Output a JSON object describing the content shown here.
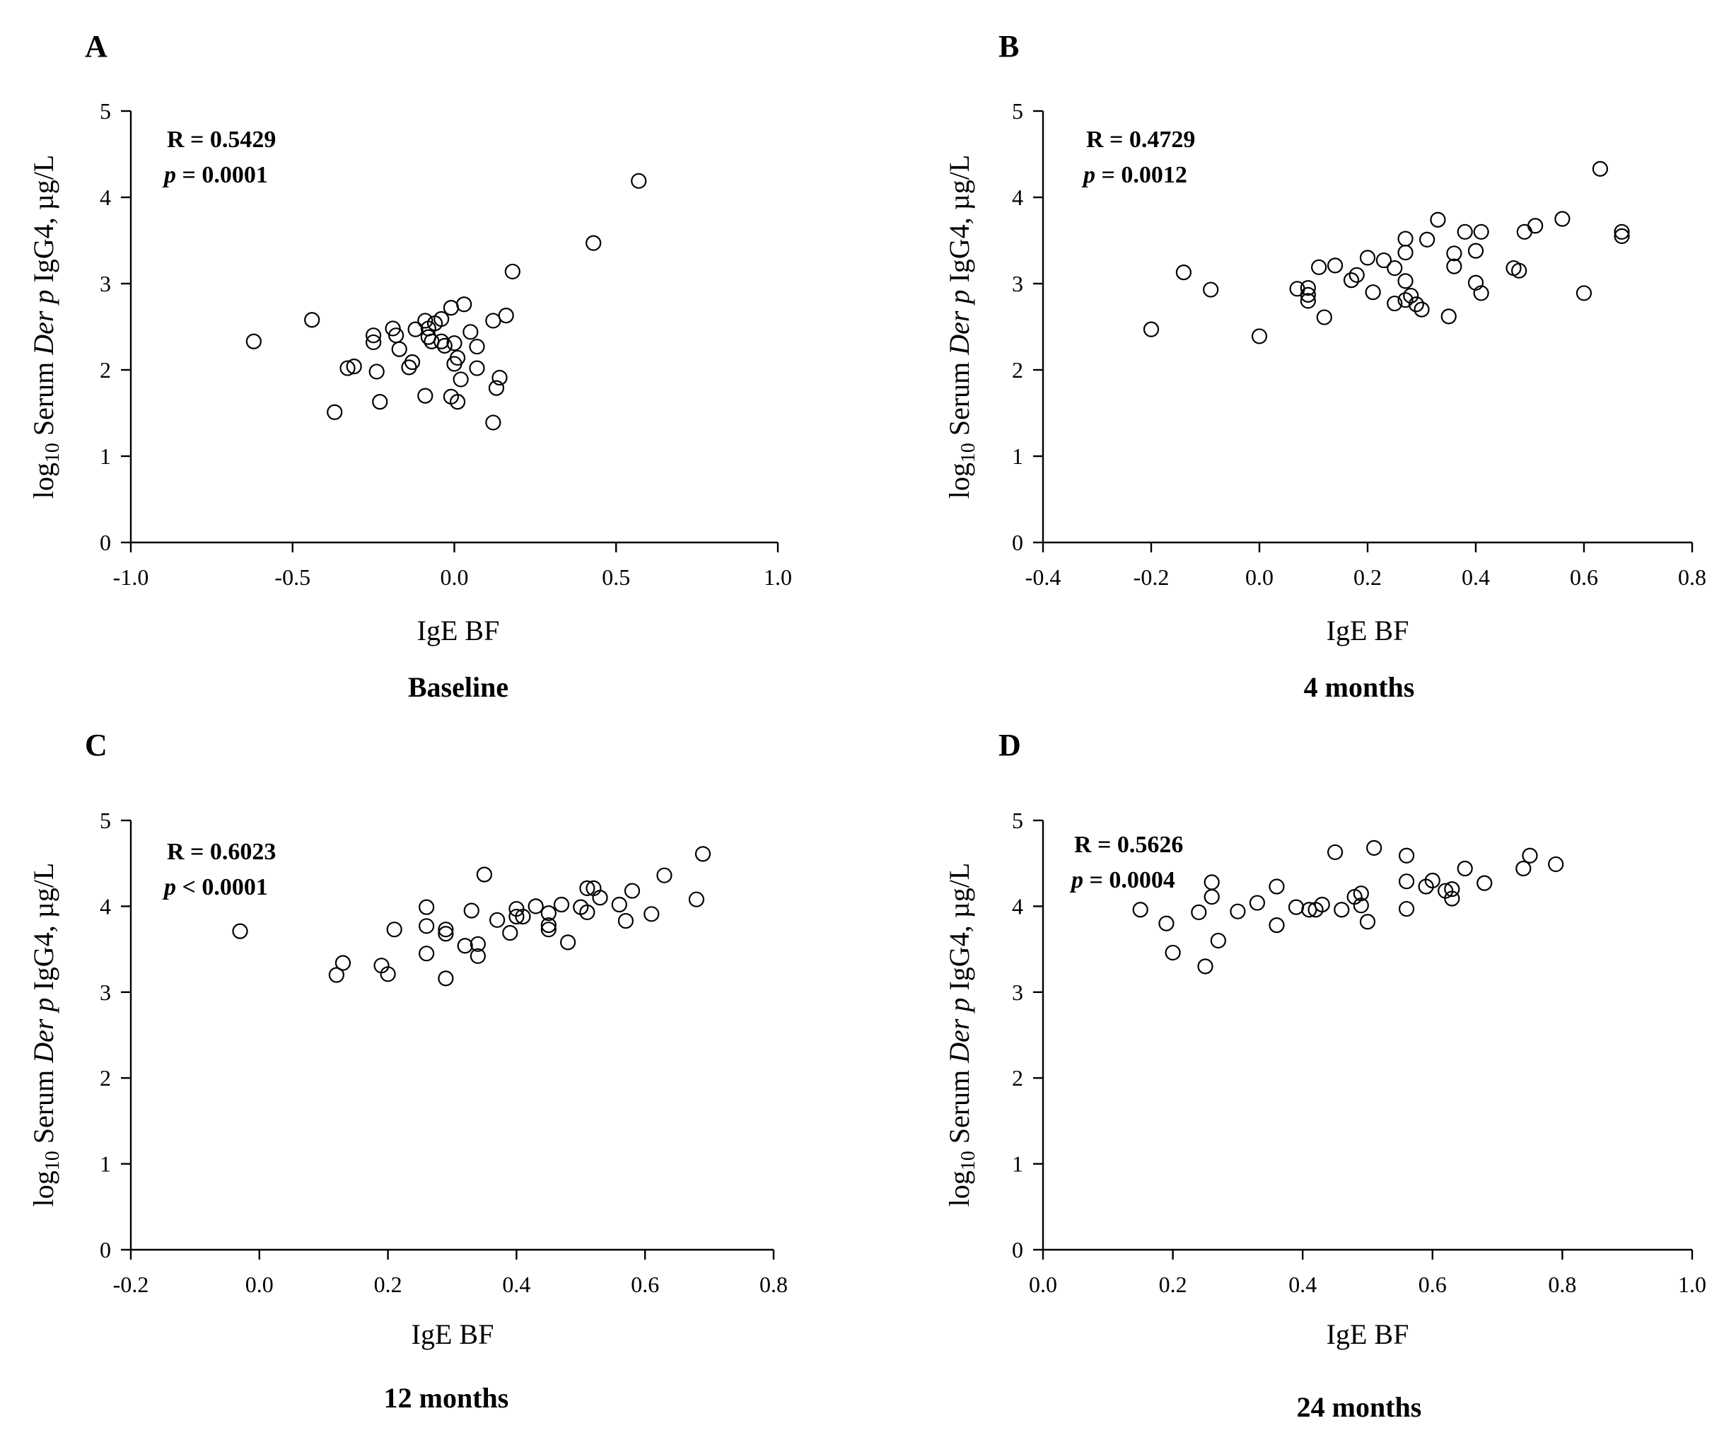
{
  "chart_data": [
    {
      "panel": "A",
      "type": "scatter",
      "subtitle": "Baseline",
      "xlabel": "IgE BF",
      "ylabel_pre": "log",
      "ylabel_sub": "10",
      "ylabel_mid": " Serum ",
      "ylabel_italic": "Der p",
      "ylabel_post": " IgG4,  µg/L",
      "stat_r": "R = 0.5429",
      "stat_p_italic": "p",
      "stat_p_value": " = 0.0001",
      "xlim": [
        -1.0,
        1.0
      ],
      "ylim": [
        0,
        5
      ],
      "xticks": [
        -1.0,
        -0.5,
        0.0,
        0.5,
        1.0
      ],
      "xtick_labels": [
        "-1.0",
        "-0.5",
        "0.0",
        "0.5",
        "1.0"
      ],
      "yticks": [
        0,
        1,
        2,
        3,
        4,
        5
      ],
      "ytick_labels": [
        "0",
        "1",
        "2",
        "3",
        "4",
        "5"
      ],
      "points": [
        [
          -0.62,
          2.33
        ],
        [
          -0.44,
          2.58
        ],
        [
          -0.37,
          1.51
        ],
        [
          -0.33,
          2.02
        ],
        [
          -0.31,
          2.04
        ],
        [
          -0.25,
          2.4
        ],
        [
          -0.25,
          2.32
        ],
        [
          -0.24,
          1.98
        ],
        [
          -0.23,
          1.63
        ],
        [
          -0.19,
          2.48
        ],
        [
          -0.18,
          2.4
        ],
        [
          -0.17,
          2.24
        ],
        [
          -0.14,
          2.03
        ],
        [
          -0.13,
          2.09
        ],
        [
          -0.12,
          2.47
        ],
        [
          -0.09,
          2.57
        ],
        [
          -0.09,
          1.7
        ],
        [
          -0.08,
          2.48
        ],
        [
          -0.08,
          2.38
        ],
        [
          -0.07,
          2.33
        ],
        [
          -0.06,
          2.54
        ],
        [
          -0.04,
          2.59
        ],
        [
          -0.04,
          2.33
        ],
        [
          -0.03,
          2.28
        ],
        [
          -0.01,
          2.72
        ],
        [
          -0.01,
          1.69
        ],
        [
          0.0,
          2.31
        ],
        [
          0.0,
          2.07
        ],
        [
          0.01,
          2.14
        ],
        [
          0.01,
          1.63
        ],
        [
          0.02,
          1.89
        ],
        [
          0.03,
          2.76
        ],
        [
          0.05,
          2.44
        ],
        [
          0.07,
          2.27
        ],
        [
          0.07,
          2.02
        ],
        [
          0.12,
          2.57
        ],
        [
          0.12,
          1.39
        ],
        [
          0.13,
          1.79
        ],
        [
          0.14,
          1.91
        ],
        [
          0.16,
          2.63
        ],
        [
          0.18,
          3.14
        ],
        [
          0.43,
          3.47
        ],
        [
          0.57,
          4.19
        ]
      ]
    },
    {
      "panel": "B",
      "type": "scatter",
      "subtitle": "4 months",
      "xlabel": "IgE BF",
      "ylabel_pre": "log",
      "ylabel_sub": "10",
      "ylabel_mid": " Serum ",
      "ylabel_italic": "Der p",
      "ylabel_post": " IgG4,  µg/L",
      "stat_r": "R = 0.4729",
      "stat_p_italic": "p",
      "stat_p_value": " = 0.0012",
      "xlim": [
        -0.4,
        0.8
      ],
      "ylim": [
        0,
        5
      ],
      "xticks": [
        -0.4,
        -0.2,
        0.0,
        0.2,
        0.4,
        0.6,
        0.8
      ],
      "xtick_labels": [
        "-0.4",
        "-0.2",
        "0.0",
        "0.2",
        "0.4",
        "0.6",
        "0.8"
      ],
      "yticks": [
        0,
        1,
        2,
        3,
        4,
        5
      ],
      "ytick_labels": [
        "0",
        "1",
        "2",
        "3",
        "4",
        "5"
      ],
      "points": [
        [
          -0.2,
          2.47
        ],
        [
          -0.14,
          3.13
        ],
        [
          -0.09,
          2.93
        ],
        [
          0.0,
          2.39
        ],
        [
          0.07,
          2.94
        ],
        [
          0.09,
          2.95
        ],
        [
          0.09,
          2.87
        ],
        [
          0.09,
          2.8
        ],
        [
          0.11,
          3.19
        ],
        [
          0.12,
          2.61
        ],
        [
          0.14,
          3.21
        ],
        [
          0.17,
          3.04
        ],
        [
          0.18,
          3.1
        ],
        [
          0.2,
          3.3
        ],
        [
          0.21,
          2.9
        ],
        [
          0.23,
          3.27
        ],
        [
          0.25,
          3.18
        ],
        [
          0.25,
          2.77
        ],
        [
          0.27,
          3.52
        ],
        [
          0.27,
          3.36
        ],
        [
          0.27,
          3.03
        ],
        [
          0.27,
          2.81
        ],
        [
          0.28,
          2.86
        ],
        [
          0.29,
          2.76
        ],
        [
          0.3,
          2.7
        ],
        [
          0.31,
          3.51
        ],
        [
          0.33,
          3.74
        ],
        [
          0.35,
          2.62
        ],
        [
          0.36,
          3.35
        ],
        [
          0.36,
          3.2
        ],
        [
          0.38,
          3.6
        ],
        [
          0.4,
          3.38
        ],
        [
          0.4,
          3.01
        ],
        [
          0.41,
          3.6
        ],
        [
          0.41,
          2.89
        ],
        [
          0.47,
          3.18
        ],
        [
          0.48,
          3.15
        ],
        [
          0.49,
          3.6
        ],
        [
          0.51,
          3.67
        ],
        [
          0.56,
          3.75
        ],
        [
          0.6,
          2.89
        ],
        [
          0.63,
          4.33
        ],
        [
          0.67,
          3.6
        ],
        [
          0.67,
          3.55
        ]
      ]
    },
    {
      "panel": "C",
      "type": "scatter",
      "subtitle": "12 months",
      "xlabel": "IgE BF",
      "ylabel_pre": "log",
      "ylabel_sub": "10",
      "ylabel_mid": " Serum ",
      "ylabel_italic": "Der p",
      "ylabel_post": " IgG4,  µg/L",
      "stat_r": "R = 0.6023",
      "stat_p_italic": "p",
      "stat_p_value": " < 0.0001",
      "xlim": [
        -0.2,
        0.8
      ],
      "ylim": [
        0,
        5
      ],
      "xticks": [
        -0.2,
        0.0,
        0.2,
        0.4,
        0.6,
        0.8
      ],
      "xtick_labels": [
        "-0.2",
        "0.0",
        "0.2",
        "0.4",
        "0.6",
        "0.8"
      ],
      "yticks": [
        0,
        1,
        2,
        3,
        4,
        5
      ],
      "ytick_labels": [
        "0",
        "1",
        "2",
        "3",
        "4",
        "5"
      ],
      "points": [
        [
          -0.03,
          3.71
        ],
        [
          0.12,
          3.2
        ],
        [
          0.13,
          3.34
        ],
        [
          0.19,
          3.31
        ],
        [
          0.2,
          3.21
        ],
        [
          0.21,
          3.73
        ],
        [
          0.26,
          3.99
        ],
        [
          0.26,
          3.77
        ],
        [
          0.26,
          3.45
        ],
        [
          0.29,
          3.73
        ],
        [
          0.29,
          3.68
        ],
        [
          0.29,
          3.16
        ],
        [
          0.32,
          3.54
        ],
        [
          0.33,
          3.95
        ],
        [
          0.34,
          3.56
        ],
        [
          0.34,
          3.42
        ],
        [
          0.35,
          4.37
        ],
        [
          0.37,
          3.84
        ],
        [
          0.39,
          3.69
        ],
        [
          0.4,
          3.97
        ],
        [
          0.4,
          3.88
        ],
        [
          0.41,
          3.88
        ],
        [
          0.43,
          4.0
        ],
        [
          0.45,
          3.92
        ],
        [
          0.45,
          3.78
        ],
        [
          0.45,
          3.73
        ],
        [
          0.47,
          4.02
        ],
        [
          0.48,
          3.58
        ],
        [
          0.5,
          3.99
        ],
        [
          0.51,
          4.21
        ],
        [
          0.51,
          3.93
        ],
        [
          0.52,
          4.21
        ],
        [
          0.53,
          4.1
        ],
        [
          0.56,
          4.02
        ],
        [
          0.57,
          3.83
        ],
        [
          0.58,
          4.18
        ],
        [
          0.61,
          3.91
        ],
        [
          0.63,
          4.36
        ],
        [
          0.68,
          4.08
        ],
        [
          0.69,
          4.61
        ]
      ]
    },
    {
      "panel": "D",
      "type": "scatter",
      "subtitle": "24 months",
      "xlabel": "IgE BF",
      "ylabel_pre": "log",
      "ylabel_sub": "10",
      "ylabel_mid": " Serum ",
      "ylabel_italic": "Der p",
      "ylabel_post": " IgG4,  µg/L",
      "stat_r": "R = 0.5626",
      "stat_p_italic": "p",
      "stat_p_value": " = 0.0004",
      "xlim": [
        0.0,
        1.0
      ],
      "ylim": [
        0,
        5
      ],
      "xticks": [
        0.0,
        0.2,
        0.4,
        0.6,
        0.8,
        1.0
      ],
      "xtick_labels": [
        "0.0",
        "0.2",
        "0.4",
        "0.6",
        "0.8",
        "1.0"
      ],
      "yticks": [
        0,
        1,
        2,
        3,
        4,
        5
      ],
      "ytick_labels": [
        "0",
        "1",
        "2",
        "3",
        "4",
        "5"
      ],
      "points": [
        [
          0.15,
          3.96
        ],
        [
          0.19,
          3.8
        ],
        [
          0.2,
          3.46
        ],
        [
          0.24,
          3.93
        ],
        [
          0.25,
          3.3
        ],
        [
          0.26,
          4.28
        ],
        [
          0.26,
          4.11
        ],
        [
          0.27,
          3.6
        ],
        [
          0.3,
          3.94
        ],
        [
          0.33,
          4.04
        ],
        [
          0.36,
          4.23
        ],
        [
          0.36,
          3.78
        ],
        [
          0.39,
          3.99
        ],
        [
          0.41,
          3.96
        ],
        [
          0.42,
          3.96
        ],
        [
          0.43,
          4.02
        ],
        [
          0.45,
          4.63
        ],
        [
          0.46,
          3.96
        ],
        [
          0.48,
          4.11
        ],
        [
          0.49,
          4.15
        ],
        [
          0.49,
          4.01
        ],
        [
          0.5,
          3.82
        ],
        [
          0.51,
          4.68
        ],
        [
          0.56,
          4.59
        ],
        [
          0.56,
          4.29
        ],
        [
          0.56,
          3.97
        ],
        [
          0.59,
          4.23
        ],
        [
          0.6,
          4.3
        ],
        [
          0.62,
          4.18
        ],
        [
          0.63,
          4.2
        ],
        [
          0.63,
          4.09
        ],
        [
          0.65,
          4.44
        ],
        [
          0.68,
          4.27
        ],
        [
          0.74,
          4.44
        ],
        [
          0.75,
          4.59
        ],
        [
          0.79,
          4.49
        ]
      ]
    }
  ]
}
